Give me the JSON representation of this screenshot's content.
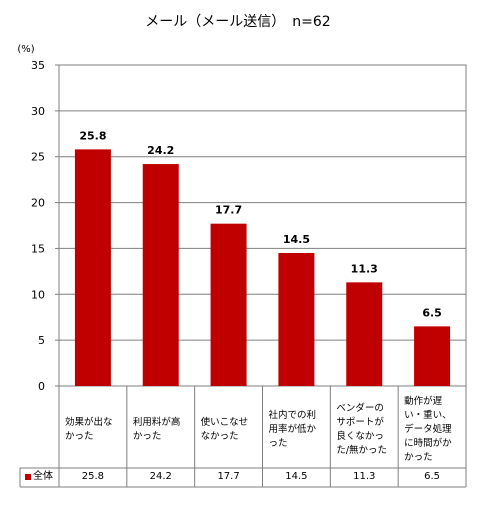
{
  "chart_data": {
    "type": "bar",
    "title": "メール（メール送信）　n=62",
    "ylabel": "(%)",
    "ylim": [
      0,
      35
    ],
    "yticks": [
      0,
      5,
      10,
      15,
      20,
      25,
      30,
      35
    ],
    "grid": true,
    "categories": [
      "効果が出なかった",
      "利用料が高かった",
      "使いこなせなかった",
      "社内での利用率が低かった",
      "ベンダーのサポートが良くなかった/無かった",
      "動作が遅い・重い、データ処理に時間がかかった"
    ],
    "series": [
      {
        "name": "全体",
        "color": "#c00000",
        "values": [
          25.8,
          24.2,
          17.7,
          14.5,
          11.3,
          6.5
        ],
        "table_values": [
          "25.8",
          "24.2",
          "17.7",
          "14.5",
          "11.3",
          "6.5"
        ]
      }
    ],
    "legend": "data-table-left"
  }
}
